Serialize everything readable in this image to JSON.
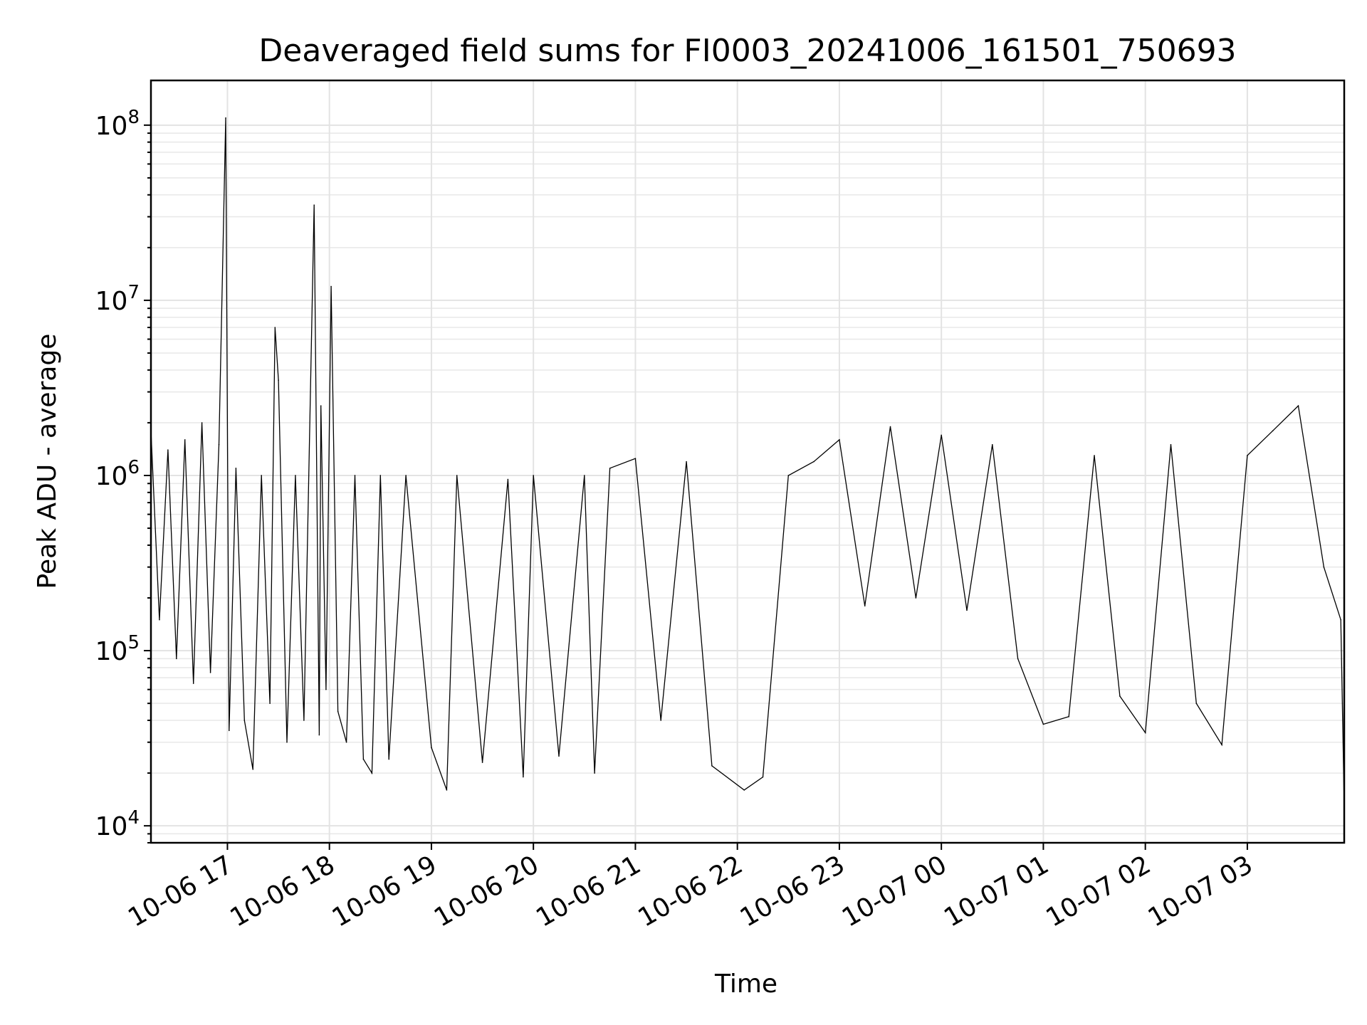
{
  "chart_data": {
    "type": "line",
    "title": "Deaveraged field sums for FI0003_20241006_161501_750693",
    "xlabel": "Time",
    "ylabel": "Peak ADU - average",
    "yscale": "log",
    "ylim": [
      8000,
      180000000
    ],
    "xlim": [
      "2024-10-06 16:15",
      "2024-10-07 03:57"
    ],
    "grid": true,
    "x_ticks": [
      {
        "value": "2024-10-06 17:00",
        "label": "10-06 17"
      },
      {
        "value": "2024-10-06 18:00",
        "label": "10-06 18"
      },
      {
        "value": "2024-10-06 19:00",
        "label": "10-06 19"
      },
      {
        "value": "2024-10-06 20:00",
        "label": "10-06 20"
      },
      {
        "value": "2024-10-06 21:00",
        "label": "10-06 21"
      },
      {
        "value": "2024-10-06 22:00",
        "label": "10-06 22"
      },
      {
        "value": "2024-10-06 23:00",
        "label": "10-06 23"
      },
      {
        "value": "2024-10-07 00:00",
        "label": "10-07 00"
      },
      {
        "value": "2024-10-07 01:00",
        "label": "10-07 01"
      },
      {
        "value": "2024-10-07 02:00",
        "label": "10-07 02"
      },
      {
        "value": "2024-10-07 03:00",
        "label": "10-07 03"
      }
    ],
    "y_ticks": [
      {
        "value": 10000,
        "base": "10",
        "exp": "4"
      },
      {
        "value": 100000,
        "base": "10",
        "exp": "5"
      },
      {
        "value": 1000000,
        "base": "10",
        "exp": "6"
      },
      {
        "value": 10000000,
        "base": "10",
        "exp": "7"
      },
      {
        "value": 100000000,
        "base": "10",
        "exp": "8"
      }
    ],
    "series": [
      {
        "color": "#000000",
        "points": [
          [
            "2024-10-06 16:15",
            1800000
          ],
          [
            "2024-10-06 16:20",
            150000
          ],
          [
            "2024-10-06 16:25",
            1400000
          ],
          [
            "2024-10-06 16:30",
            90000
          ],
          [
            "2024-10-06 16:35",
            1600000
          ],
          [
            "2024-10-06 16:40",
            65000
          ],
          [
            "2024-10-06 16:45",
            2000000
          ],
          [
            "2024-10-06 16:50",
            75000
          ],
          [
            "2024-10-06 16:55",
            1500000
          ],
          [
            "2024-10-06 16:59",
            110000000
          ],
          [
            "2024-10-06 17:01",
            35000
          ],
          [
            "2024-10-06 17:05",
            1100000
          ],
          [
            "2024-10-06 17:10",
            40000
          ],
          [
            "2024-10-06 17:15",
            21000
          ],
          [
            "2024-10-06 17:20",
            1000000
          ],
          [
            "2024-10-06 17:25",
            50000
          ],
          [
            "2024-10-06 17:28",
            7000000
          ],
          [
            "2024-10-06 17:30",
            3500000
          ],
          [
            "2024-10-06 17:35",
            30000
          ],
          [
            "2024-10-06 17:40",
            1000000
          ],
          [
            "2024-10-06 17:45",
            40000
          ],
          [
            "2024-10-06 17:51",
            35000000
          ],
          [
            "2024-10-06 17:54",
            33000
          ],
          [
            "2024-10-06 17:55",
            2500000
          ],
          [
            "2024-10-06 17:58",
            60000
          ],
          [
            "2024-10-06 18:01",
            12000000
          ],
          [
            "2024-10-06 18:05",
            45000
          ],
          [
            "2024-10-06 18:10",
            30000
          ],
          [
            "2024-10-06 18:15",
            1000000
          ],
          [
            "2024-10-06 18:20",
            24000
          ],
          [
            "2024-10-06 18:25",
            20000
          ],
          [
            "2024-10-06 18:30",
            1000000
          ],
          [
            "2024-10-06 18:35",
            24000
          ],
          [
            "2024-10-06 18:45",
            1000000
          ],
          [
            "2024-10-06 19:00",
            28000
          ],
          [
            "2024-10-06 19:09",
            16000
          ],
          [
            "2024-10-06 19:15",
            1000000
          ],
          [
            "2024-10-06 19:30",
            23000
          ],
          [
            "2024-10-06 19:45",
            950000
          ],
          [
            "2024-10-06 19:54",
            19000
          ],
          [
            "2024-10-06 20:00",
            1000000
          ],
          [
            "2024-10-06 20:15",
            25000
          ],
          [
            "2024-10-06 20:30",
            1000000
          ],
          [
            "2024-10-06 20:36",
            20000
          ],
          [
            "2024-10-06 20:45",
            1100000
          ],
          [
            "2024-10-06 21:00",
            1250000
          ],
          [
            "2024-10-06 21:15",
            40000
          ],
          [
            "2024-10-06 21:30",
            1200000
          ],
          [
            "2024-10-06 21:45",
            22000
          ],
          [
            "2024-10-06 22:04",
            16000
          ],
          [
            "2024-10-06 22:15",
            19000
          ],
          [
            "2024-10-06 22:30",
            1000000
          ],
          [
            "2024-10-06 22:45",
            1200000
          ],
          [
            "2024-10-06 23:00",
            1600000
          ],
          [
            "2024-10-06 23:15",
            180000
          ],
          [
            "2024-10-06 23:30",
            1900000
          ],
          [
            "2024-10-06 23:45",
            200000
          ],
          [
            "2024-10-07 00:00",
            1700000
          ],
          [
            "2024-10-07 00:15",
            170000
          ],
          [
            "2024-10-07 00:30",
            1500000
          ],
          [
            "2024-10-07 00:45",
            90000
          ],
          [
            "2024-10-07 01:00",
            38000
          ],
          [
            "2024-10-07 01:15",
            42000
          ],
          [
            "2024-10-07 01:30",
            1300000
          ],
          [
            "2024-10-07 01:45",
            55000
          ],
          [
            "2024-10-07 02:00",
            34000
          ],
          [
            "2024-10-07 02:15",
            1500000
          ],
          [
            "2024-10-07 02:30",
            50000
          ],
          [
            "2024-10-07 02:45",
            29000
          ],
          [
            "2024-10-07 03:00",
            1300000
          ],
          [
            "2024-10-07 03:15",
            1800000
          ],
          [
            "2024-10-07 03:30",
            2500000
          ],
          [
            "2024-10-07 03:45",
            300000
          ],
          [
            "2024-10-07 03:55",
            150000
          ],
          [
            "2024-10-07 03:57",
            13000
          ]
        ]
      }
    ]
  }
}
